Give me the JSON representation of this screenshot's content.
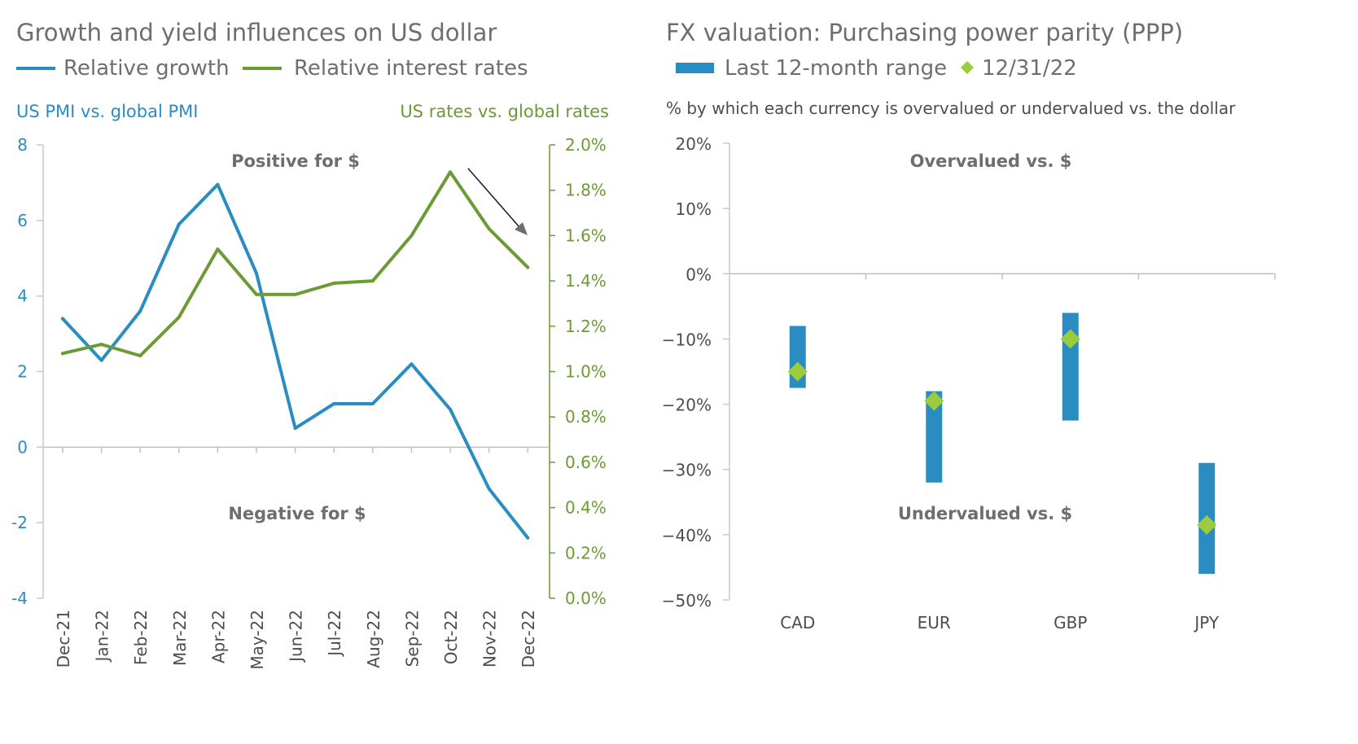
{
  "left_chart": {
    "title": "Growth and yield influences on US dollar",
    "legend": [
      {
        "label": "Relative growth",
        "color": "#2a8dc2"
      },
      {
        "label": "Relative interest rates",
        "color": "#6c9a35"
      }
    ],
    "left_axis_title": "US PMI vs. global PMI",
    "right_axis_title": "US rates vs. global rates",
    "annotation_top": "Positive for $",
    "annotation_bottom": "Negative for $",
    "chart_data": {
      "type": "line",
      "categories": [
        "Dec-21",
        "Jan-22",
        "Feb-22",
        "Mar-22",
        "Apr-22",
        "May-22",
        "Jun-22",
        "Jul-22",
        "Aug-22",
        "Sep-22",
        "Oct-22",
        "Nov-22",
        "Dec-22"
      ],
      "left_axis": {
        "ylim": [
          -4,
          8
        ],
        "ticks": [
          8,
          6,
          4,
          2,
          0,
          -2,
          -4
        ],
        "tick_labels": [
          "8",
          "6",
          "4",
          "2",
          "0",
          "-2",
          "-4"
        ]
      },
      "right_axis": {
        "ylim": [
          0.0,
          2.0
        ],
        "ticks": [
          2.0,
          1.8,
          1.6,
          1.4,
          1.2,
          1.0,
          0.8,
          0.6,
          0.4,
          0.2,
          0.0
        ],
        "tick_labels": [
          "2.0%",
          "1.8%",
          "1.6%",
          "1.4%",
          "1.2%",
          "1.0%",
          "0.8%",
          "0.6%",
          "0.4%",
          "0.2%",
          "0.0%"
        ]
      },
      "series": [
        {
          "name": "Relative growth",
          "axis": "left",
          "color": "#2a8dc2",
          "values": [
            3.4,
            2.3,
            3.6,
            5.9,
            6.95,
            4.6,
            0.5,
            1.15,
            1.15,
            2.2,
            1.0,
            -1.1,
            -2.4
          ]
        },
        {
          "name": "Relative interest rates",
          "axis": "right",
          "color": "#6c9a35",
          "values": [
            1.08,
            1.12,
            1.07,
            1.24,
            1.54,
            1.34,
            1.34,
            1.39,
            1.4,
            1.6,
            1.88,
            1.63,
            1.46
          ]
        }
      ]
    }
  },
  "right_chart": {
    "title": "FX valuation: Purchasing power parity (PPP)",
    "legend": [
      {
        "label": "Last 12-month range",
        "color": "#2a8dc2"
      },
      {
        "label": "12/31/22",
        "color": "#9ccc3c"
      }
    ],
    "subtitle": "% by which each currency is overvalued or undervalued vs. the dollar",
    "annotation_top": "Overvalued vs. $",
    "annotation_bottom": "Undervalued vs. $",
    "chart_data": {
      "type": "range",
      "categories": [
        "CAD",
        "EUR",
        "GBP",
        "JPY"
      ],
      "ylim": [
        -50,
        20
      ],
      "ticks": [
        20,
        10,
        0,
        -10,
        -20,
        -30,
        -40,
        -50
      ],
      "tick_labels": [
        "20%",
        "10%",
        "0%",
        "−10%",
        "−20%",
        "−30%",
        "−40%",
        "−50%"
      ],
      "series": [
        {
          "name": "Last 12-month range",
          "low": [
            -17.5,
            -32,
            -22.5,
            -46
          ],
          "high": [
            -8,
            -18,
            -6,
            -29
          ]
        },
        {
          "name": "12/31/22",
          "values": [
            -15,
            -19.5,
            -10,
            -38.5
          ]
        }
      ]
    }
  }
}
